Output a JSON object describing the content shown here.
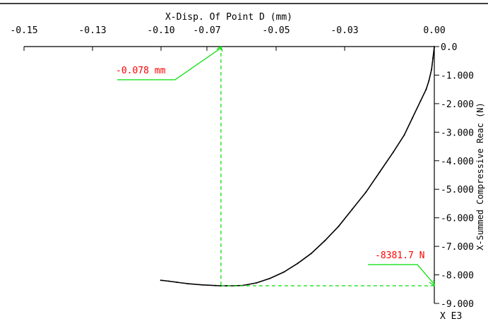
{
  "chart_data": {
    "type": "line",
    "title": "",
    "xlabel": "X-Disp. Of Point D (mm)",
    "ylabel": "X-Summed Compressive Reac (N)",
    "xlim": [
      -0.15,
      0.0
    ],
    "ylim": [
      -9000,
      0
    ],
    "x_ticks": [
      {
        "value": -0.15,
        "label": "-0.15"
      },
      {
        "value": -0.13,
        "label": "-0.13"
      },
      {
        "value": -0.1,
        "label": "-0.10"
      },
      {
        "value": -0.07,
        "label": "-0.07"
      },
      {
        "value": -0.05,
        "label": "-0.05"
      },
      {
        "value": -0.03,
        "label": "-0.03"
      },
      {
        "value": 0.0,
        "label": "0.00"
      }
    ],
    "y_ticks": [
      {
        "value": 0,
        "label": "0.0"
      },
      {
        "value": -1000,
        "label": "-1.000"
      },
      {
        "value": -2000,
        "label": "-2.000"
      },
      {
        "value": -3000,
        "label": "-3.000"
      },
      {
        "value": -4000,
        "label": "-4.000"
      },
      {
        "value": -5000,
        "label": "-5.000"
      },
      {
        "value": -6000,
        "label": "-6.000"
      },
      {
        "value": -7000,
        "label": "-7.000"
      },
      {
        "value": -8000,
        "label": "-8.000"
      },
      {
        "value": -9000,
        "label": "-9.000"
      }
    ],
    "y_scale_label": "X E3",
    "series": [
      {
        "color": "#000000",
        "x": [
          0.0,
          -0.0005,
          -0.001,
          -0.002,
          -0.003,
          -0.005,
          -0.008,
          -0.011,
          -0.015,
          -0.02,
          -0.025,
          -0.03,
          -0.035,
          -0.04,
          -0.045,
          -0.05,
          -0.055,
          -0.06,
          -0.065,
          -0.07,
          -0.073,
          -0.076,
          -0.078,
          -0.08,
          -0.085,
          -0.09,
          -0.094,
          -0.097,
          -0.1
        ],
        "y": [
          0,
          -400,
          -800,
          -1200,
          -1500,
          -1900,
          -2500,
          -3100,
          -3700,
          -4400,
          -5100,
          -5700,
          -6300,
          -6800,
          -7250,
          -7600,
          -7900,
          -8120,
          -8280,
          -8370,
          -8380,
          -8381.7,
          -8381.7,
          -8375,
          -8350,
          -8310,
          -8260,
          -8220,
          -8190
        ]
      }
    ],
    "annotations": [
      {
        "text": "-0.078 mm",
        "color": "#ff0000",
        "x": -0.078,
        "y": 0
      },
      {
        "text": "-8381.7 N",
        "color": "#ff0000",
        "x": 0.0,
        "y": -8381.7
      }
    ],
    "guide_color": "#00dd00",
    "grid": false
  }
}
